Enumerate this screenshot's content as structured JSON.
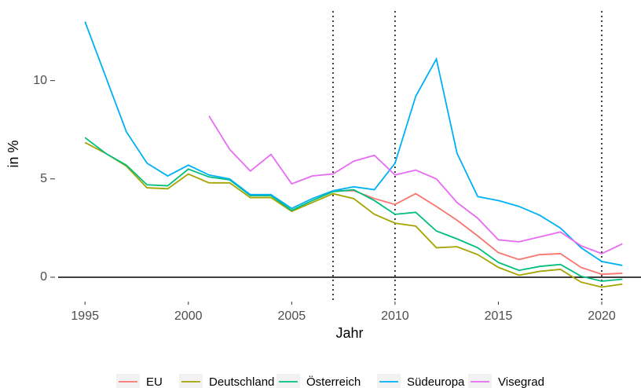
{
  "chart_data": {
    "type": "line",
    "x_label": "Jahr",
    "y_label": "in %",
    "x": [
      1995,
      1996,
      1997,
      1998,
      1999,
      2000,
      2001,
      2002,
      2003,
      2004,
      2005,
      2006,
      2007,
      2008,
      2009,
      2010,
      2011,
      2012,
      2013,
      2014,
      2015,
      2016,
      2017,
      2018,
      2019,
      2020,
      2021
    ],
    "series": [
      {
        "name": "EU",
        "color": "#F8766D",
        "values": [
          null,
          null,
          null,
          null,
          null,
          null,
          null,
          null,
          null,
          null,
          null,
          null,
          4.4,
          4.4,
          4.0,
          3.7,
          4.25,
          3.6,
          2.9,
          2.1,
          1.25,
          0.9,
          1.15,
          1.2,
          0.5,
          0.15,
          0.2
        ]
      },
      {
        "name": "Deutschland",
        "color": "#A3A500",
        "values": [
          6.85,
          6.3,
          5.65,
          4.55,
          4.5,
          5.25,
          4.8,
          4.8,
          4.05,
          4.05,
          3.35,
          3.8,
          4.25,
          4.0,
          3.2,
          2.75,
          2.6,
          1.5,
          1.55,
          1.15,
          0.5,
          0.1,
          0.3,
          0.4,
          -0.25,
          -0.5,
          -0.35
        ]
      },
      {
        "name": "Österreich",
        "color": "#00BF7D",
        "values": [
          7.1,
          6.3,
          5.7,
          4.7,
          4.65,
          5.5,
          5.1,
          4.95,
          4.15,
          4.15,
          3.4,
          3.9,
          4.35,
          4.45,
          3.9,
          3.2,
          3.3,
          2.35,
          1.95,
          1.5,
          0.75,
          0.35,
          0.55,
          0.65,
          0.05,
          -0.2,
          -0.1
        ]
      },
      {
        "name": "Südeuropa",
        "color": "#00B0F6",
        "values": [
          13.0,
          10.2,
          7.4,
          5.8,
          5.15,
          5.7,
          5.2,
          5.0,
          4.2,
          4.2,
          3.5,
          4.0,
          4.4,
          4.6,
          4.45,
          5.8,
          9.2,
          11.1,
          6.3,
          4.1,
          3.9,
          3.6,
          3.15,
          2.5,
          1.5,
          0.8,
          0.6
        ]
      },
      {
        "name": "Visegrad",
        "color": "#E76BF3",
        "values": [
          null,
          null,
          null,
          null,
          null,
          null,
          8.2,
          6.5,
          5.4,
          6.25,
          4.75,
          5.15,
          5.25,
          5.9,
          6.2,
          5.2,
          5.45,
          5.0,
          3.8,
          3.0,
          1.9,
          1.8,
          2.05,
          2.3,
          1.6,
          1.2,
          1.7
        ]
      }
    ],
    "xlim": [
      1993.7,
      2021.9
    ],
    "xticks": [
      1995,
      2000,
      2005,
      2010,
      2015,
      2020
    ],
    "ylim": [
      -1.2,
      13.7
    ],
    "yticks": [
      0,
      5,
      10
    ],
    "vlines": [
      2007,
      2010,
      2020
    ],
    "hline": 0,
    "legend": "bottom"
  }
}
